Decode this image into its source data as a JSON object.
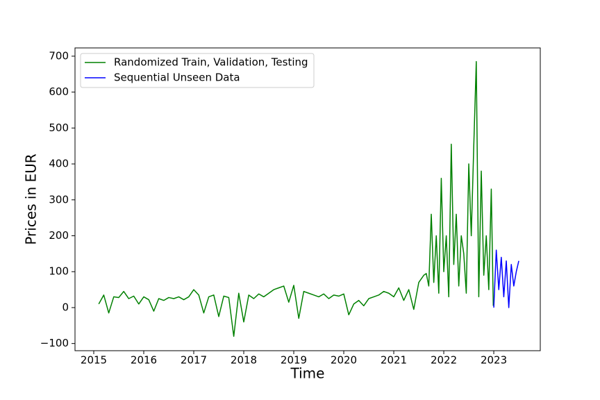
{
  "chart_data": {
    "type": "line",
    "xlabel": "Time",
    "ylabel": "Prices in EUR",
    "xlim": [
      2014.625,
      2023.93
    ],
    "xticks": [
      2015,
      2016,
      2017,
      2018,
      2019,
      2020,
      2021,
      2022,
      2023
    ],
    "ylim": [
      -120,
      723
    ],
    "yticks": [
      {
        "value": -100,
        "label": "−100"
      },
      0,
      100,
      200,
      300,
      400,
      500,
      600,
      700
    ],
    "legend": "upper left",
    "grid": false,
    "series": [
      {
        "name": "Randomized Train, Validation, Testing",
        "color": "#008000",
        "x": [
          2015.1,
          2015.2,
          2015.3,
          2015.4,
          2015.5,
          2015.6,
          2015.7,
          2015.8,
          2015.9,
          2016.0,
          2016.1,
          2016.2,
          2016.3,
          2016.4,
          2016.5,
          2016.6,
          2016.7,
          2016.8,
          2016.9,
          2017.0,
          2017.1,
          2017.2,
          2017.3,
          2017.4,
          2017.5,
          2017.6,
          2017.7,
          2017.8,
          2017.9,
          2018.0,
          2018.1,
          2018.2,
          2018.3,
          2018.4,
          2018.5,
          2018.6,
          2018.7,
          2018.8,
          2018.9,
          2019.0,
          2019.1,
          2019.2,
          2019.3,
          2019.4,
          2019.5,
          2019.6,
          2019.7,
          2019.8,
          2019.9,
          2020.0,
          2020.1,
          2020.2,
          2020.3,
          2020.4,
          2020.5,
          2020.6,
          2020.7,
          2020.8,
          2020.9,
          2021.0,
          2021.1,
          2021.2,
          2021.3,
          2021.4,
          2021.5,
          2021.55,
          2021.6,
          2021.65,
          2021.7,
          2021.75,
          2021.8,
          2021.85,
          2021.9,
          2021.95,
          2022.0,
          2022.05,
          2022.1,
          2022.15,
          2022.2,
          2022.25,
          2022.3,
          2022.35,
          2022.4,
          2022.45,
          2022.5,
          2022.55,
          2022.6,
          2022.65,
          2022.7,
          2022.75,
          2022.8,
          2022.85,
          2022.9,
          2022.95,
          2022.99
        ],
        "values": [
          10,
          35,
          -15,
          30,
          28,
          45,
          25,
          32,
          10,
          30,
          22,
          -10,
          25,
          20,
          28,
          25,
          30,
          22,
          30,
          50,
          35,
          -15,
          30,
          35,
          -25,
          32,
          28,
          -80,
          40,
          -40,
          35,
          25,
          38,
          30,
          40,
          50,
          55,
          60,
          15,
          62,
          -30,
          45,
          40,
          35,
          30,
          38,
          25,
          35,
          32,
          38,
          -20,
          10,
          20,
          5,
          25,
          30,
          35,
          45,
          40,
          30,
          55,
          20,
          50,
          -5,
          70,
          80,
          90,
          95,
          60,
          260,
          70,
          200,
          40,
          360,
          100,
          200,
          30,
          455,
          120,
          260,
          60,
          200,
          150,
          40,
          400,
          200,
          450,
          685,
          30,
          380,
          90,
          200,
          50,
          330,
          5
        ]
      },
      {
        "name": "Sequential Unseen Data",
        "color": "#0000ff",
        "x": [
          2023.0,
          2023.05,
          2023.1,
          2023.15,
          2023.2,
          2023.25,
          2023.3,
          2023.35,
          2023.4,
          2023.45,
          2023.5
        ],
        "values": [
          0,
          160,
          50,
          140,
          30,
          130,
          0,
          120,
          60,
          100,
          130
        ]
      }
    ]
  }
}
